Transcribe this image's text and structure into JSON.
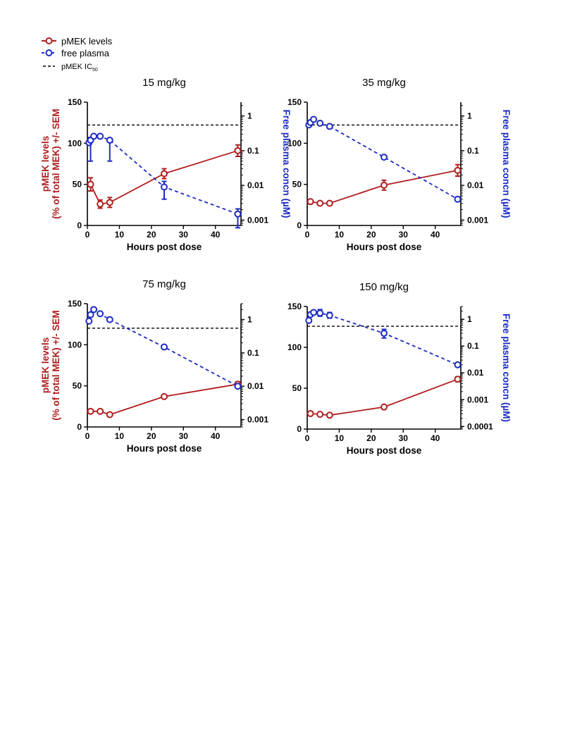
{
  "legend": {
    "items": [
      {
        "label": "pMEK levels",
        "style": "solid",
        "color": "#b01e1e"
      },
      {
        "label": "free plasma",
        "style": "dashed",
        "color": "#1c2bc4"
      },
      {
        "label": "pMEK IC",
        "sub": "50",
        "style": "dashed",
        "color": "#000000"
      }
    ]
  },
  "colors": {
    "pmek": "#b01e1e",
    "plasma": "#1c2bc4",
    "ic50": "#000000"
  },
  "chart_data": [
    {
      "type": "line",
      "title": "15 mg/kg",
      "xlabel": "Hours post dose",
      "ylabel_lines": [
        "pMEK levels",
        "(% of total MEK) +/- SEM"
      ],
      "y2label": "Free plasma concn (µM)",
      "x_ticks": [
        "0",
        "10",
        "20",
        "30",
        "40"
      ],
      "y_ticks": [
        "0",
        "50",
        "100",
        "150"
      ],
      "y2_ticks": [
        "0.001",
        "0.01",
        "0.1",
        "1"
      ],
      "xlim": [
        0,
        48
      ],
      "ylim": [
        0,
        150
      ],
      "y2_scale": "log",
      "y2lim": [
        0.0007,
        2.5
      ],
      "ic50_plasma": 0.55,
      "series": [
        {
          "name": "pMEK levels",
          "axis": "left",
          "x": [
            1,
            4,
            7,
            24,
            47
          ],
          "y": [
            50,
            26,
            28,
            63,
            91
          ],
          "err": [
            8,
            5,
            6,
            6,
            7
          ]
        },
        {
          "name": "free plasma",
          "axis": "right",
          "x": [
            0.5,
            1,
            2,
            4,
            7,
            24,
            47
          ],
          "y": [
            0.17,
            0.2,
            0.26,
            0.26,
            0.2,
            0.009,
            0.0015
          ],
          "err_lo": [
            null,
            0.05,
            null,
            null,
            0.05,
            0.004,
            0.0006
          ],
          "err_hi": [
            null,
            0.24,
            null,
            null,
            0.23,
            0.013,
            0.0021
          ]
        }
      ]
    },
    {
      "type": "line",
      "title": "35 mg/kg",
      "xlabel": "Hours post dose",
      "ylabel_lines": [],
      "y2label": "Free plasma concn (µM)",
      "x_ticks": [
        "0",
        "10",
        "20",
        "30",
        "40"
      ],
      "y_ticks": [
        "0",
        "50",
        "100",
        "150"
      ],
      "y2_ticks": [
        "0.001",
        "0.01",
        "0.1",
        "1"
      ],
      "xlim": [
        0,
        48
      ],
      "ylim": [
        0,
        150
      ],
      "y2_scale": "log",
      "y2lim": [
        0.0007,
        2.5
      ],
      "ic50_plasma": 0.55,
      "series": [
        {
          "name": "pMEK levels",
          "axis": "left",
          "x": [
            1,
            4,
            7,
            24,
            47
          ],
          "y": [
            29,
            27,
            27,
            49,
            67
          ],
          "err": [
            2,
            2,
            2,
            6,
            7
          ]
        },
        {
          "name": "free plasma",
          "axis": "right",
          "x": [
            0.5,
            1,
            2,
            4,
            7,
            24,
            47
          ],
          "y": [
            0.55,
            0.65,
            0.8,
            0.62,
            0.5,
            0.065,
            0.004
          ],
          "err_lo": [
            null,
            null,
            null,
            null,
            null,
            null,
            null
          ],
          "err_hi": [
            null,
            null,
            null,
            null,
            null,
            null,
            null
          ]
        }
      ]
    },
    {
      "type": "line",
      "title": "75 mg/kg",
      "xlabel": "Hours post dose",
      "ylabel_lines": [
        "pMEK levels",
        "(% of total MEK) +/- SEM"
      ],
      "y2label": "",
      "x_ticks": [
        "0",
        "10",
        "20",
        "30",
        "40"
      ],
      "y_ticks": [
        "0",
        "50",
        "100",
        "150"
      ],
      "y2_ticks": [
        "0.001",
        "0.01",
        "0.1",
        "1"
      ],
      "xlim": [
        0,
        48
      ],
      "ylim": [
        0,
        150
      ],
      "y2_scale": "log",
      "y2lim": [
        0.0006,
        3
      ],
      "ic50_plasma": 0.55,
      "series": [
        {
          "name": "pMEK levels",
          "axis": "left",
          "x": [
            1,
            4,
            7,
            24,
            47
          ],
          "y": [
            19,
            19,
            15,
            37,
            52
          ],
          "err": [
            1,
            1,
            1,
            2,
            3
          ]
        },
        {
          "name": "free plasma",
          "axis": "right",
          "x": [
            0.5,
            1,
            2,
            4,
            7,
            24,
            47
          ],
          "y": [
            0.9,
            1.4,
            2.0,
            1.5,
            1.0,
            0.15,
            0.01
          ],
          "err_lo": [
            null,
            null,
            null,
            null,
            null,
            null,
            null
          ],
          "err_hi": [
            null,
            null,
            null,
            null,
            null,
            null,
            null
          ]
        }
      ]
    },
    {
      "type": "line",
      "title": "150 mg/kg",
      "xlabel": "Hours post dose",
      "ylabel_lines": [],
      "y2label": "Free plasma concn (µM)",
      "x_ticks": [
        "0",
        "10",
        "20",
        "30",
        "40"
      ],
      "y_ticks": [
        "0",
        "50",
        "100",
        "150"
      ],
      "y2_ticks": [
        "0.0001",
        "0.001",
        "0.01",
        "0.1",
        "1"
      ],
      "xlim": [
        0,
        48
      ],
      "ylim": [
        0,
        150
      ],
      "y2_scale": "log",
      "y2lim": [
        8e-05,
        3
      ],
      "ic50_plasma": 0.55,
      "series": [
        {
          "name": "pMEK levels",
          "axis": "left",
          "x": [
            1,
            4,
            7,
            24,
            47
          ],
          "y": [
            19,
            18,
            17,
            27,
            61
          ],
          "err": [
            1,
            1,
            1,
            1,
            3
          ]
        },
        {
          "name": "free plasma",
          "axis": "right",
          "x": [
            0.5,
            1,
            2,
            4,
            7,
            24,
            47
          ],
          "y": [
            0.9,
            1.5,
            1.8,
            1.7,
            1.4,
            0.3,
            0.02
          ],
          "err_lo": [
            null,
            null,
            null,
            1.3,
            1.1,
            0.2,
            null
          ],
          "err_hi": [
            null,
            null,
            null,
            2.3,
            1.8,
            0.42,
            null
          ]
        }
      ]
    }
  ]
}
